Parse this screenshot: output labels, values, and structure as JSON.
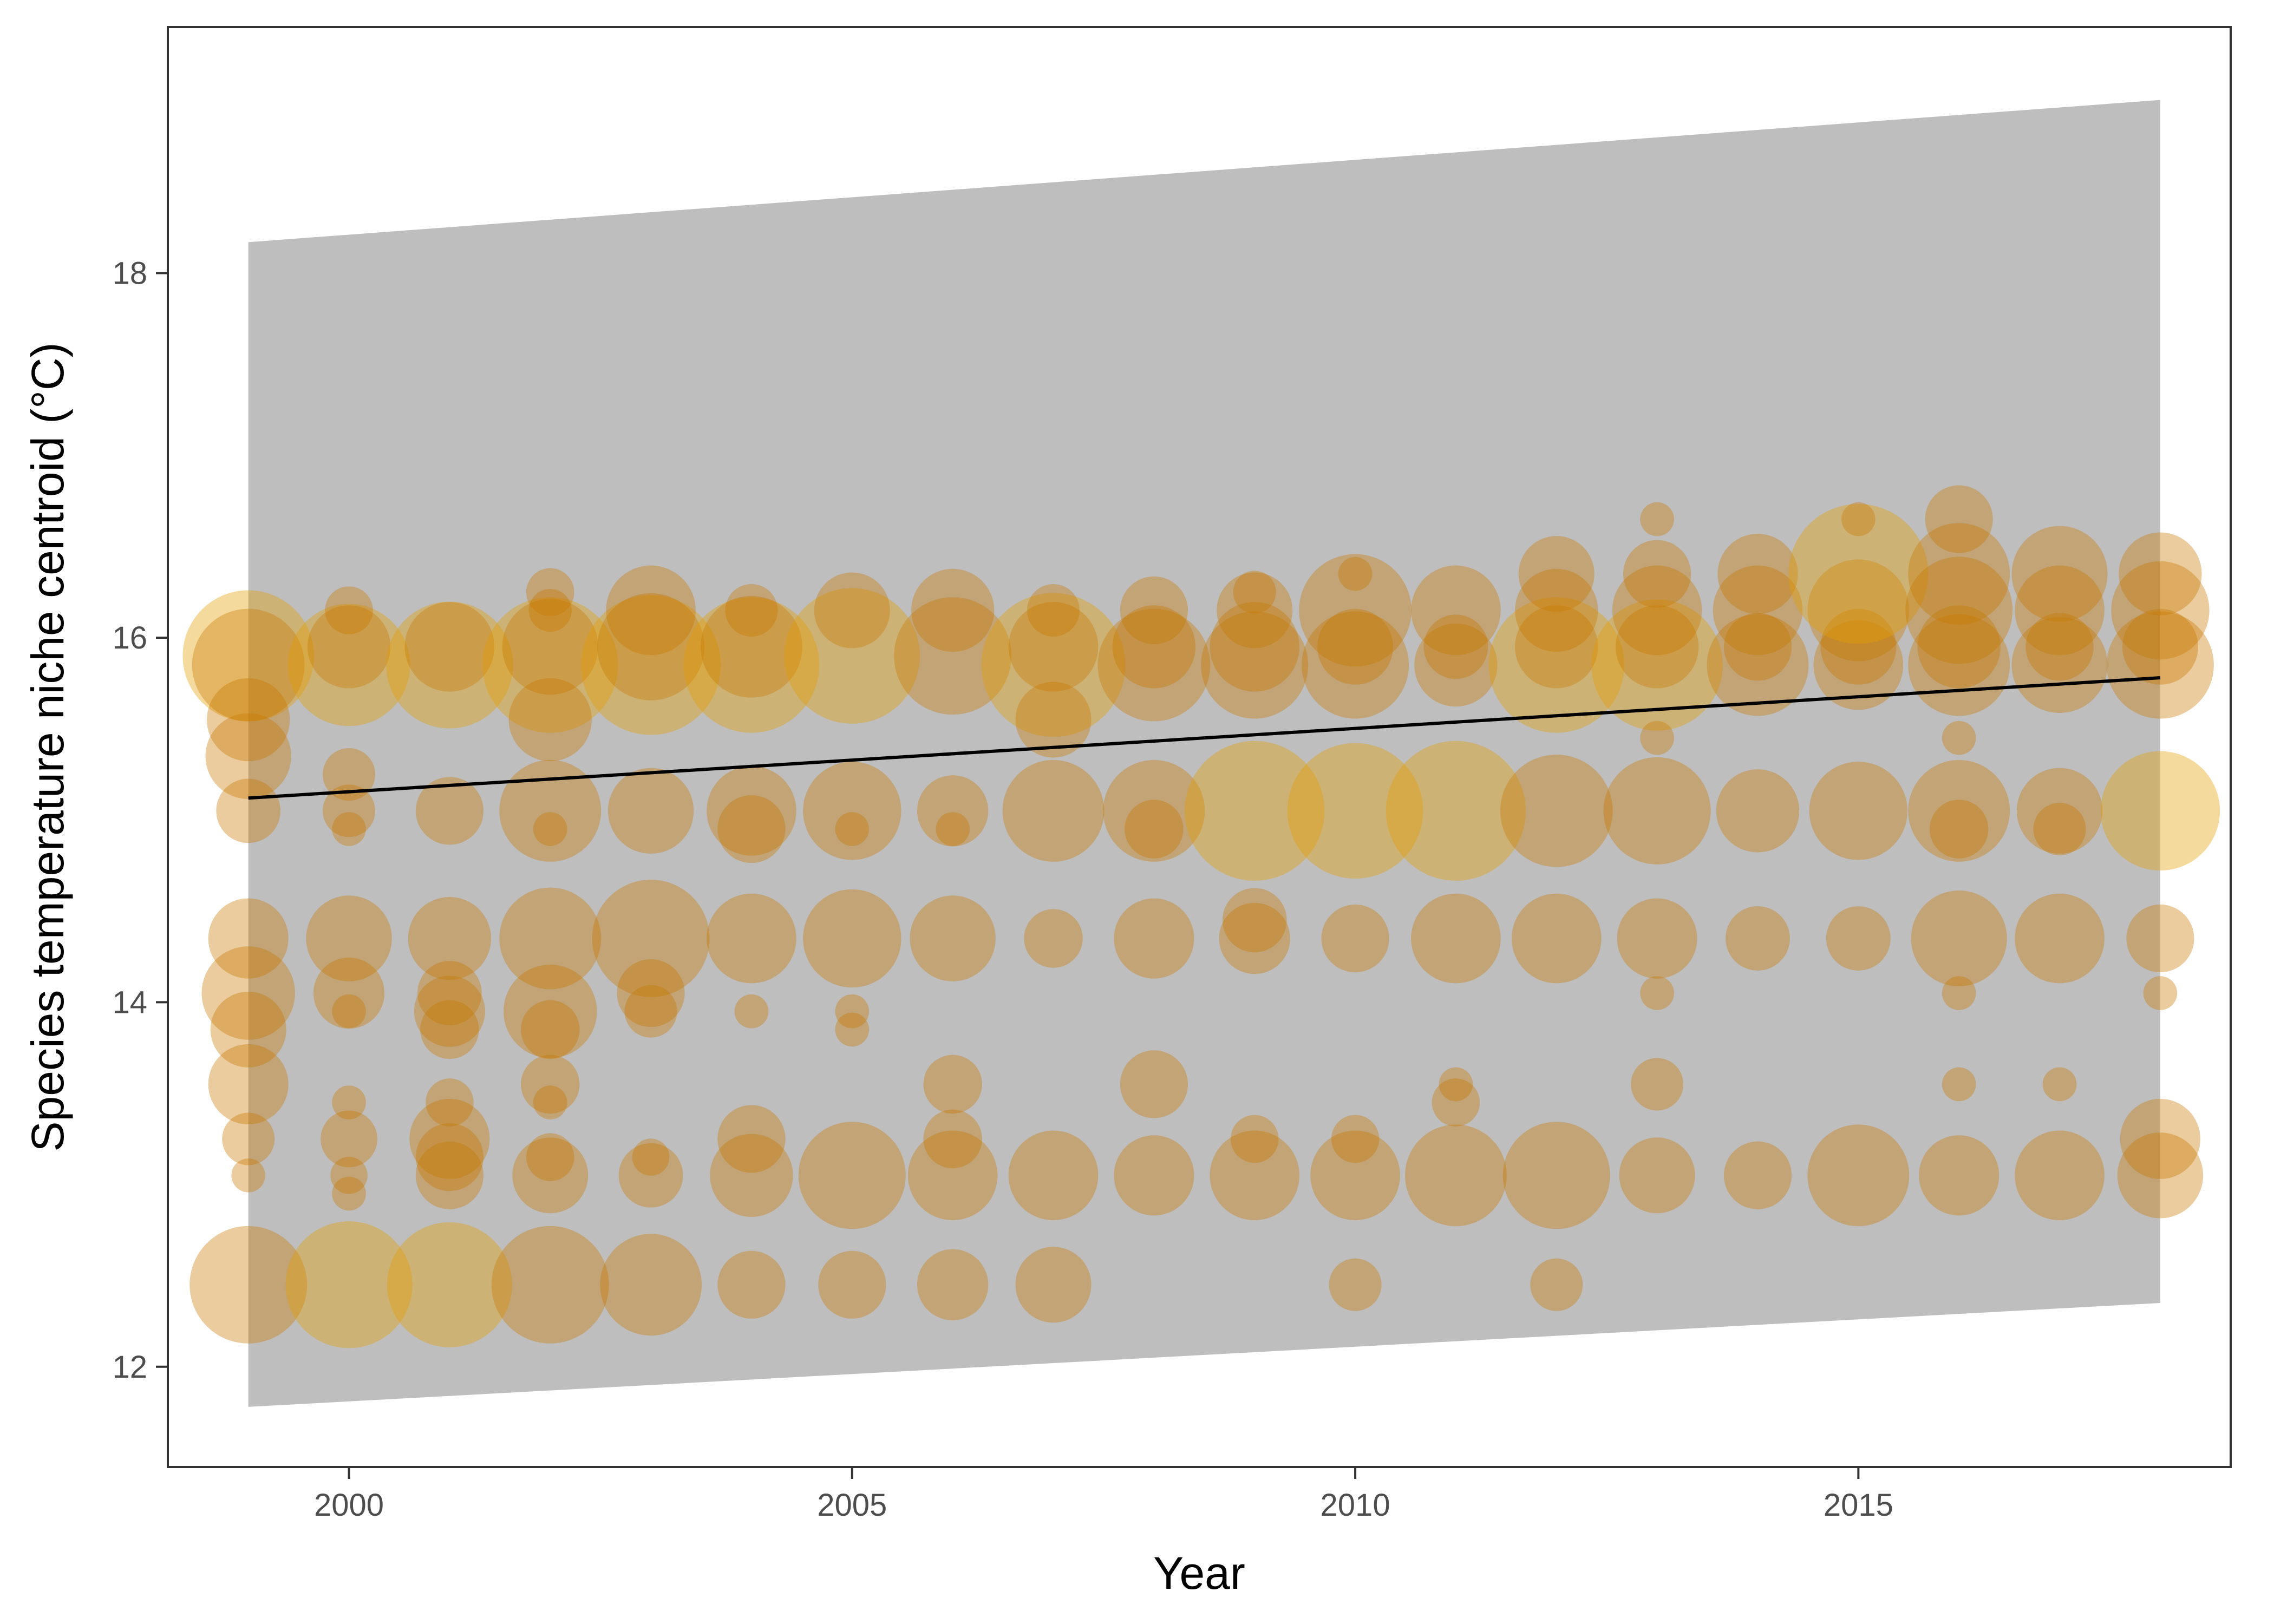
{
  "chart_data": {
    "type": "scatter",
    "title": "",
    "xlabel": "Year",
    "ylabel": "Species temperature niche centroid (°C)",
    "xlim": [
      1998.2,
      2018.7
    ],
    "ylim": [
      11.45,
      19.35
    ],
    "x_ticks": [
      2000,
      2005,
      2010,
      2015
    ],
    "y_ticks": [
      12,
      14,
      16,
      18
    ],
    "grid": false,
    "legend": "none",
    "colors": {
      "points": "#e69f00",
      "points_dark": "#c87800",
      "ribbon": "#bebebe",
      "trend": "#000000",
      "frame": "#333333"
    },
    "trend_line": {
      "x": [
        1999,
        2018
      ],
      "y": [
        15.12,
        15.78
      ]
    },
    "ribbon": {
      "x": [
        1999,
        2018
      ],
      "lower": [
        11.78,
        12.35
      ],
      "upper": [
        18.17,
        18.95
      ]
    },
    "points": [
      {
        "x": 1999,
        "y": 15.9,
        "size": 0.75
      },
      {
        "x": 1999,
        "y": 15.85,
        "size": 0.55
      },
      {
        "x": 1999,
        "y": 15.55,
        "size": 0.3
      },
      {
        "x": 1999,
        "y": 15.35,
        "size": 0.32
      },
      {
        "x": 1999,
        "y": 15.05,
        "size": 0.18
      },
      {
        "x": 1999,
        "y": 14.35,
        "size": 0.28
      },
      {
        "x": 1999,
        "y": 14.05,
        "size": 0.38
      },
      {
        "x": 1999,
        "y": 13.85,
        "size": 0.25
      },
      {
        "x": 1999,
        "y": 13.55,
        "size": 0.28
      },
      {
        "x": 1999,
        "y": 13.25,
        "size": 0.12
      },
      {
        "x": 1999,
        "y": 13.05,
        "size": 0.05
      },
      {
        "x": 1999,
        "y": 12.45,
        "size": 0.6
      },
      {
        "x": 2000,
        "y": 15.85,
        "size": 0.65
      },
      {
        "x": 2000,
        "y": 15.95,
        "size": 0.3
      },
      {
        "x": 2000,
        "y": 16.15,
        "size": 0.1
      },
      {
        "x": 2000,
        "y": 15.25,
        "size": 0.12
      },
      {
        "x": 2000,
        "y": 15.05,
        "size": 0.12
      },
      {
        "x": 2000,
        "y": 14.95,
        "size": 0.05
      },
      {
        "x": 2000,
        "y": 14.35,
        "size": 0.32
      },
      {
        "x": 2000,
        "y": 14.05,
        "size": 0.22
      },
      {
        "x": 2000,
        "y": 13.95,
        "size": 0.05
      },
      {
        "x": 2000,
        "y": 13.45,
        "size": 0.05
      },
      {
        "x": 2000,
        "y": 13.25,
        "size": 0.14
      },
      {
        "x": 2000,
        "y": 13.05,
        "size": 0.06
      },
      {
        "x": 2000,
        "y": 12.95,
        "size": 0.05
      },
      {
        "x": 2000,
        "y": 12.45,
        "size": 0.7
      },
      {
        "x": 2001,
        "y": 15.85,
        "size": 0.7
      },
      {
        "x": 2001,
        "y": 15.95,
        "size": 0.35
      },
      {
        "x": 2001,
        "y": 15.05,
        "size": 0.2
      },
      {
        "x": 2001,
        "y": 14.35,
        "size": 0.3
      },
      {
        "x": 2001,
        "y": 14.05,
        "size": 0.18
      },
      {
        "x": 2001,
        "y": 13.95,
        "size": 0.22
      },
      {
        "x": 2001,
        "y": 13.85,
        "size": 0.15
      },
      {
        "x": 2001,
        "y": 13.45,
        "size": 0.1
      },
      {
        "x": 2001,
        "y": 13.25,
        "size": 0.28
      },
      {
        "x": 2001,
        "y": 13.15,
        "size": 0.2
      },
      {
        "x": 2001,
        "y": 13.05,
        "size": 0.2
      },
      {
        "x": 2001,
        "y": 12.45,
        "size": 0.68
      },
      {
        "x": 2002,
        "y": 15.85,
        "size": 0.8
      },
      {
        "x": 2002,
        "y": 15.95,
        "size": 0.4
      },
      {
        "x": 2002,
        "y": 16.25,
        "size": 0.1
      },
      {
        "x": 2002,
        "y": 16.15,
        "size": 0.08
      },
      {
        "x": 2002,
        "y": 15.55,
        "size": 0.3
      },
      {
        "x": 2002,
        "y": 15.05,
        "size": 0.45
      },
      {
        "x": 2002,
        "y": 14.95,
        "size": 0.05
      },
      {
        "x": 2002,
        "y": 14.35,
        "size": 0.45
      },
      {
        "x": 2002,
        "y": 13.95,
        "size": 0.38
      },
      {
        "x": 2002,
        "y": 13.85,
        "size": 0.15
      },
      {
        "x": 2002,
        "y": 13.55,
        "size": 0.15
      },
      {
        "x": 2002,
        "y": 13.45,
        "size": 0.05
      },
      {
        "x": 2002,
        "y": 13.15,
        "size": 0.1
      },
      {
        "x": 2002,
        "y": 13.05,
        "size": 0.25
      },
      {
        "x": 2002,
        "y": 12.45,
        "size": 0.6
      },
      {
        "x": 2003,
        "y": 15.85,
        "size": 0.85
      },
      {
        "x": 2003,
        "y": 15.95,
        "size": 0.5
      },
      {
        "x": 2003,
        "y": 16.15,
        "size": 0.35
      },
      {
        "x": 2003,
        "y": 15.05,
        "size": 0.32
      },
      {
        "x": 2003,
        "y": 14.35,
        "size": 0.6
      },
      {
        "x": 2003,
        "y": 14.05,
        "size": 0.2
      },
      {
        "x": 2003,
        "y": 13.95,
        "size": 0.12
      },
      {
        "x": 2003,
        "y": 13.15,
        "size": 0.06
      },
      {
        "x": 2003,
        "y": 13.05,
        "size": 0.18
      },
      {
        "x": 2003,
        "y": 12.45,
        "size": 0.45
      },
      {
        "x": 2004,
        "y": 15.85,
        "size": 0.8
      },
      {
        "x": 2004,
        "y": 15.95,
        "size": 0.45
      },
      {
        "x": 2004,
        "y": 16.15,
        "size": 0.12
      },
      {
        "x": 2004,
        "y": 15.05,
        "size": 0.35
      },
      {
        "x": 2004,
        "y": 14.95,
        "size": 0.2
      },
      {
        "x": 2004,
        "y": 14.35,
        "size": 0.35
      },
      {
        "x": 2004,
        "y": 13.95,
        "size": 0.05
      },
      {
        "x": 2004,
        "y": 13.25,
        "size": 0.2
      },
      {
        "x": 2004,
        "y": 13.05,
        "size": 0.3
      },
      {
        "x": 2004,
        "y": 12.45,
        "size": 0.2
      },
      {
        "x": 2005,
        "y": 15.9,
        "size": 0.8
      },
      {
        "x": 2005,
        "y": 16.15,
        "size": 0.25
      },
      {
        "x": 2005,
        "y": 15.05,
        "size": 0.42
      },
      {
        "x": 2005,
        "y": 14.95,
        "size": 0.05
      },
      {
        "x": 2005,
        "y": 14.35,
        "size": 0.42
      },
      {
        "x": 2005,
        "y": 13.95,
        "size": 0.05
      },
      {
        "x": 2005,
        "y": 13.85,
        "size": 0.05
      },
      {
        "x": 2005,
        "y": 13.05,
        "size": 0.5
      },
      {
        "x": 2005,
        "y": 12.45,
        "size": 0.2
      },
      {
        "x": 2006,
        "y": 15.9,
        "size": 0.6
      },
      {
        "x": 2006,
        "y": 16.15,
        "size": 0.3
      },
      {
        "x": 2006,
        "y": 15.05,
        "size": 0.22
      },
      {
        "x": 2006,
        "y": 14.95,
        "size": 0.05
      },
      {
        "x": 2006,
        "y": 14.35,
        "size": 0.32
      },
      {
        "x": 2006,
        "y": 13.55,
        "size": 0.15
      },
      {
        "x": 2006,
        "y": 13.25,
        "size": 0.15
      },
      {
        "x": 2006,
        "y": 13.05,
        "size": 0.35
      },
      {
        "x": 2006,
        "y": 12.45,
        "size": 0.22
      },
      {
        "x": 2007,
        "y": 15.85,
        "size": 0.9
      },
      {
        "x": 2007,
        "y": 15.95,
        "size": 0.35
      },
      {
        "x": 2007,
        "y": 16.15,
        "size": 0.12
      },
      {
        "x": 2007,
        "y": 15.55,
        "size": 0.25
      },
      {
        "x": 2007,
        "y": 15.05,
        "size": 0.45
      },
      {
        "x": 2007,
        "y": 14.35,
        "size": 0.15
      },
      {
        "x": 2007,
        "y": 13.05,
        "size": 0.35
      },
      {
        "x": 2007,
        "y": 12.45,
        "size": 0.25
      },
      {
        "x": 2008,
        "y": 15.85,
        "size": 0.55
      },
      {
        "x": 2008,
        "y": 15.95,
        "size": 0.3
      },
      {
        "x": 2008,
        "y": 16.15,
        "size": 0.2
      },
      {
        "x": 2008,
        "y": 15.05,
        "size": 0.45
      },
      {
        "x": 2008,
        "y": 14.95,
        "size": 0.15
      },
      {
        "x": 2008,
        "y": 14.35,
        "size": 0.28
      },
      {
        "x": 2008,
        "y": 13.55,
        "size": 0.2
      },
      {
        "x": 2008,
        "y": 13.05,
        "size": 0.28
      },
      {
        "x": 2009,
        "y": 15.85,
        "size": 0.5
      },
      {
        "x": 2009,
        "y": 15.95,
        "size": 0.35
      },
      {
        "x": 2009,
        "y": 16.15,
        "size": 0.25
      },
      {
        "x": 2009,
        "y": 16.25,
        "size": 0.08
      },
      {
        "x": 2009,
        "y": 15.05,
        "size": 0.85
      },
      {
        "x": 2009,
        "y": 14.45,
        "size": 0.18
      },
      {
        "x": 2009,
        "y": 14.35,
        "size": 0.22
      },
      {
        "x": 2009,
        "y": 13.25,
        "size": 0.1
      },
      {
        "x": 2009,
        "y": 13.05,
        "size": 0.35
      },
      {
        "x": 2010,
        "y": 15.85,
        "size": 0.5
      },
      {
        "x": 2010,
        "y": 15.95,
        "size": 0.25
      },
      {
        "x": 2010,
        "y": 16.15,
        "size": 0.55
      },
      {
        "x": 2010,
        "y": 16.35,
        "size": 0.05
      },
      {
        "x": 2010,
        "y": 15.05,
        "size": 0.8
      },
      {
        "x": 2010,
        "y": 14.35,
        "size": 0.2
      },
      {
        "x": 2010,
        "y": 13.25,
        "size": 0.1
      },
      {
        "x": 2010,
        "y": 13.05,
        "size": 0.35
      },
      {
        "x": 2010,
        "y": 12.45,
        "size": 0.12
      },
      {
        "x": 2011,
        "y": 15.85,
        "size": 0.3
      },
      {
        "x": 2011,
        "y": 15.95,
        "size": 0.18
      },
      {
        "x": 2011,
        "y": 16.15,
        "size": 0.35
      },
      {
        "x": 2011,
        "y": 15.05,
        "size": 0.85
      },
      {
        "x": 2011,
        "y": 14.35,
        "size": 0.35
      },
      {
        "x": 2011,
        "y": 13.55,
        "size": 0.05
      },
      {
        "x": 2011,
        "y": 13.45,
        "size": 0.1
      },
      {
        "x": 2011,
        "y": 13.05,
        "size": 0.45
      },
      {
        "x": 2012,
        "y": 15.85,
        "size": 0.8
      },
      {
        "x": 2012,
        "y": 15.95,
        "size": 0.3
      },
      {
        "x": 2012,
        "y": 16.15,
        "size": 0.3
      },
      {
        "x": 2012,
        "y": 16.35,
        "size": 0.25
      },
      {
        "x": 2012,
        "y": 15.05,
        "size": 0.55
      },
      {
        "x": 2012,
        "y": 14.35,
        "size": 0.35
      },
      {
        "x": 2012,
        "y": 13.05,
        "size": 0.5
      },
      {
        "x": 2012,
        "y": 12.45,
        "size": 0.12
      },
      {
        "x": 2013,
        "y": 15.85,
        "size": 0.75
      },
      {
        "x": 2013,
        "y": 15.95,
        "size": 0.3
      },
      {
        "x": 2013,
        "y": 16.15,
        "size": 0.35
      },
      {
        "x": 2013,
        "y": 16.35,
        "size": 0.2
      },
      {
        "x": 2013,
        "y": 16.65,
        "size": 0.05
      },
      {
        "x": 2013,
        "y": 15.45,
        "size": 0.05
      },
      {
        "x": 2013,
        "y": 15.05,
        "size": 0.5
      },
      {
        "x": 2013,
        "y": 14.35,
        "size": 0.28
      },
      {
        "x": 2013,
        "y": 14.05,
        "size": 0.05
      },
      {
        "x": 2013,
        "y": 13.55,
        "size": 0.12
      },
      {
        "x": 2013,
        "y": 13.05,
        "size": 0.25
      },
      {
        "x": 2014,
        "y": 15.85,
        "size": 0.45
      },
      {
        "x": 2014,
        "y": 15.95,
        "size": 0.2
      },
      {
        "x": 2014,
        "y": 16.15,
        "size": 0.35
      },
      {
        "x": 2014,
        "y": 16.35,
        "size": 0.28
      },
      {
        "x": 2014,
        "y": 15.05,
        "size": 0.3
      },
      {
        "x": 2014,
        "y": 14.35,
        "size": 0.18
      },
      {
        "x": 2014,
        "y": 13.05,
        "size": 0.2
      },
      {
        "x": 2015,
        "y": 15.85,
        "size": 0.35
      },
      {
        "x": 2015,
        "y": 15.95,
        "size": 0.25
      },
      {
        "x": 2015,
        "y": 16.15,
        "size": 0.45
      },
      {
        "x": 2015,
        "y": 16.35,
        "size": 0.85
      },
      {
        "x": 2015,
        "y": 16.65,
        "size": 0.05
      },
      {
        "x": 2015,
        "y": 15.05,
        "size": 0.42
      },
      {
        "x": 2015,
        "y": 14.35,
        "size": 0.18
      },
      {
        "x": 2015,
        "y": 13.05,
        "size": 0.45
      },
      {
        "x": 2016,
        "y": 15.85,
        "size": 0.45
      },
      {
        "x": 2016,
        "y": 15.95,
        "size": 0.3
      },
      {
        "x": 2016,
        "y": 16.15,
        "size": 0.5
      },
      {
        "x": 2016,
        "y": 16.35,
        "size": 0.45
      },
      {
        "x": 2016,
        "y": 16.65,
        "size": 0.2
      },
      {
        "x": 2016,
        "y": 15.45,
        "size": 0.05
      },
      {
        "x": 2016,
        "y": 15.05,
        "size": 0.45
      },
      {
        "x": 2016,
        "y": 14.95,
        "size": 0.15
      },
      {
        "x": 2016,
        "y": 14.35,
        "size": 0.4
      },
      {
        "x": 2016,
        "y": 14.05,
        "size": 0.05
      },
      {
        "x": 2016,
        "y": 13.55,
        "size": 0.05
      },
      {
        "x": 2016,
        "y": 13.05,
        "size": 0.28
      },
      {
        "x": 2017,
        "y": 15.85,
        "size": 0.4
      },
      {
        "x": 2017,
        "y": 15.95,
        "size": 0.2
      },
      {
        "x": 2017,
        "y": 16.15,
        "size": 0.35
      },
      {
        "x": 2017,
        "y": 16.35,
        "size": 0.4
      },
      {
        "x": 2017,
        "y": 15.05,
        "size": 0.32
      },
      {
        "x": 2017,
        "y": 14.95,
        "size": 0.12
      },
      {
        "x": 2017,
        "y": 14.35,
        "size": 0.35
      },
      {
        "x": 2017,
        "y": 13.55,
        "size": 0.05
      },
      {
        "x": 2017,
        "y": 13.05,
        "size": 0.35
      },
      {
        "x": 2018,
        "y": 15.85,
        "size": 0.5
      },
      {
        "x": 2018,
        "y": 15.95,
        "size": 0.25
      },
      {
        "x": 2018,
        "y": 16.15,
        "size": 0.42
      },
      {
        "x": 2018,
        "y": 16.35,
        "size": 0.3
      },
      {
        "x": 2018,
        "y": 15.05,
        "size": 0.62
      },
      {
        "x": 2018,
        "y": 14.35,
        "size": 0.2
      },
      {
        "x": 2018,
        "y": 14.05,
        "size": 0.05
      },
      {
        "x": 2018,
        "y": 13.25,
        "size": 0.28
      },
      {
        "x": 2018,
        "y": 13.05,
        "size": 0.32
      }
    ]
  }
}
